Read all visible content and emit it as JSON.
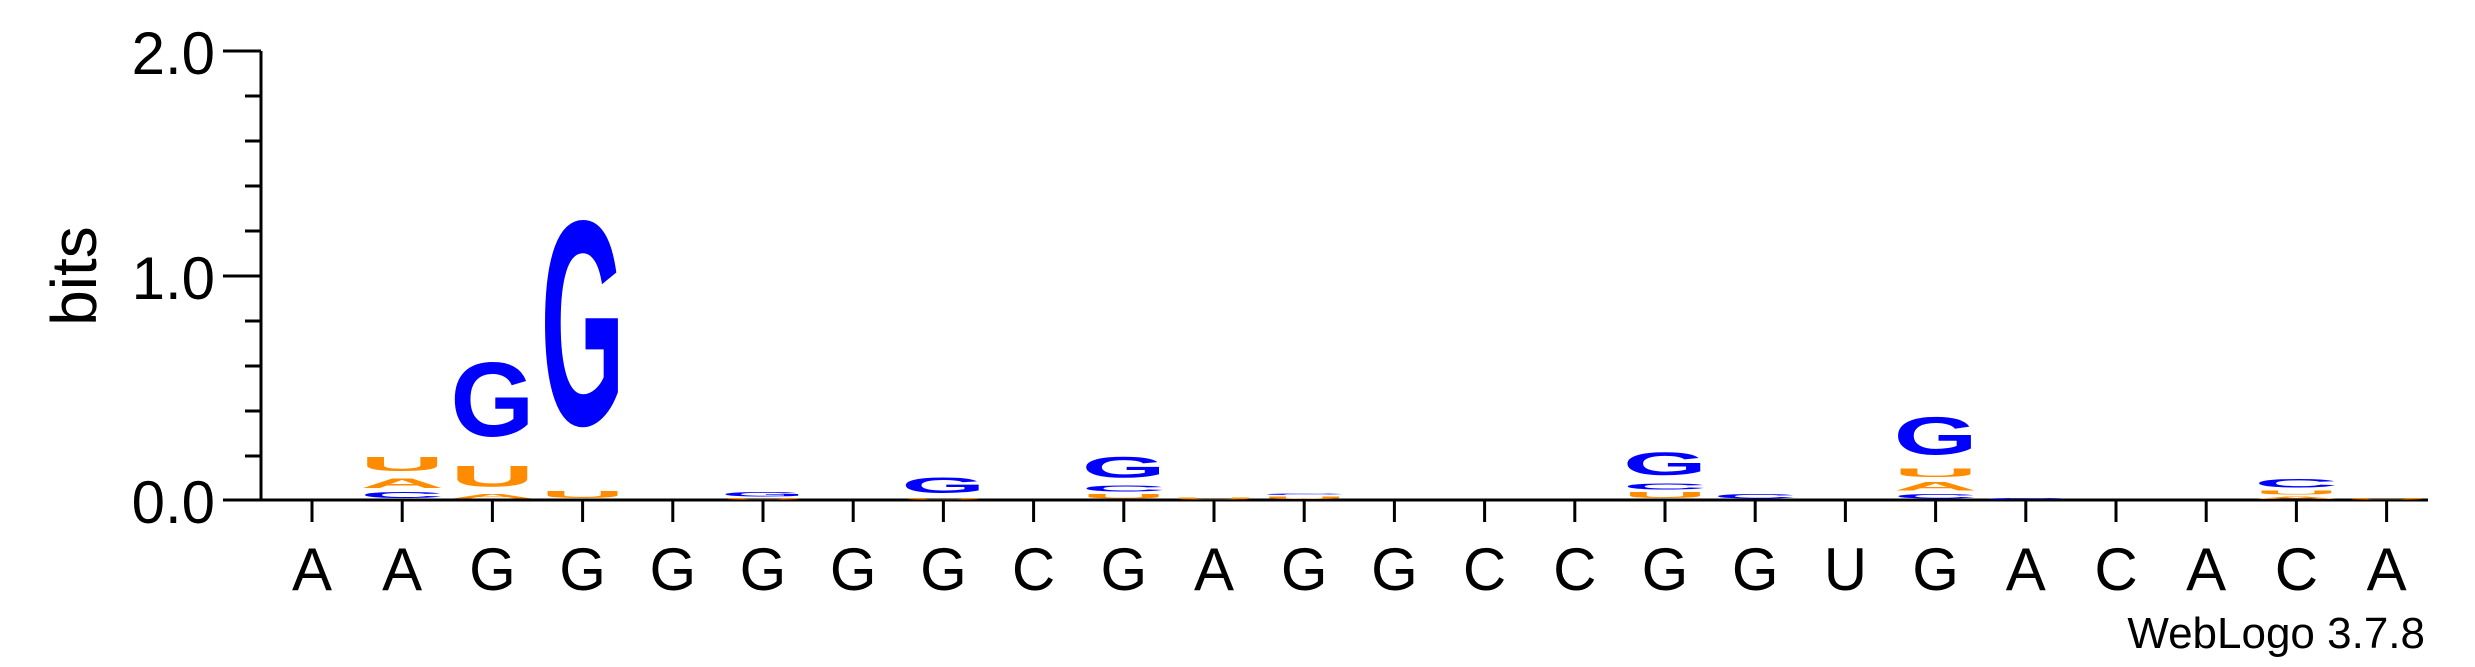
{
  "chart_data": {
    "type": "sequence-logo",
    "ylabel": "bits",
    "ylim": [
      0,
      2.0
    ],
    "yticks": [
      "0.0",
      "1.0",
      "2.0"
    ],
    "positions": [
      "A",
      "A",
      "G",
      "G",
      "G",
      "G",
      "G",
      "G",
      "C",
      "G",
      "A",
      "G",
      "G",
      "C",
      "C",
      "G",
      "G",
      "U",
      "G",
      "A",
      "C",
      "A",
      "C",
      "A"
    ],
    "stacks": [
      [],
      [
        {
          "base": "C",
          "bits": 0.04
        },
        {
          "base": "A",
          "bits": 0.07
        },
        {
          "base": "U",
          "bits": 0.1
        }
      ],
      [
        {
          "base": "A",
          "bits": 0.03
        },
        {
          "base": "U",
          "bits": 0.15
        },
        {
          "base": "G",
          "bits": 0.53
        }
      ],
      [
        {
          "base": "U",
          "bits": 0.05
        },
        {
          "base": "G",
          "bits": 1.46
        }
      ],
      [],
      [
        {
          "base": "U",
          "bits": 0.01
        },
        {
          "base": "G",
          "bits": 0.03
        }
      ],
      [],
      [
        {
          "base": "U",
          "bits": 0.01
        },
        {
          "base": "G",
          "bits": 0.11
        }
      ],
      [],
      [
        {
          "base": "U",
          "bits": 0.03
        },
        {
          "base": "C",
          "bits": 0.04
        },
        {
          "base": "G",
          "bits": 0.15
        }
      ],
      [
        {
          "base": "U",
          "bits": 0.015
        }
      ],
      [
        {
          "base": "U",
          "bits": 0.02
        },
        {
          "base": "C",
          "bits": 0.01
        }
      ],
      [],
      [],
      [],
      [
        {
          "base": "U",
          "bits": 0.04
        },
        {
          "base": "C",
          "bits": 0.04
        },
        {
          "base": "G",
          "bits": 0.16
        }
      ],
      [
        {
          "base": "C",
          "bits": 0.03
        }
      ],
      [],
      [
        {
          "base": "C",
          "bits": 0.03
        },
        {
          "base": "A",
          "bits": 0.06
        },
        {
          "base": "U",
          "bits": 0.06
        },
        {
          "base": "G",
          "bits": 0.27
        }
      ],
      [
        {
          "base": "C",
          "bits": 0.01
        }
      ],
      [],
      [],
      [
        {
          "base": "A",
          "bits": 0.02
        },
        {
          "base": "U",
          "bits": 0.025
        },
        {
          "base": "C",
          "bits": 0.06
        }
      ],
      [
        {
          "base": "U",
          "bits": 0.01
        }
      ]
    ],
    "base_colors": {
      "G": "#0000ff",
      "C": "#0000ff",
      "U": "#ff8c00",
      "A": "#ff8c00"
    }
  },
  "credit": "WebLogo 3.7.8"
}
